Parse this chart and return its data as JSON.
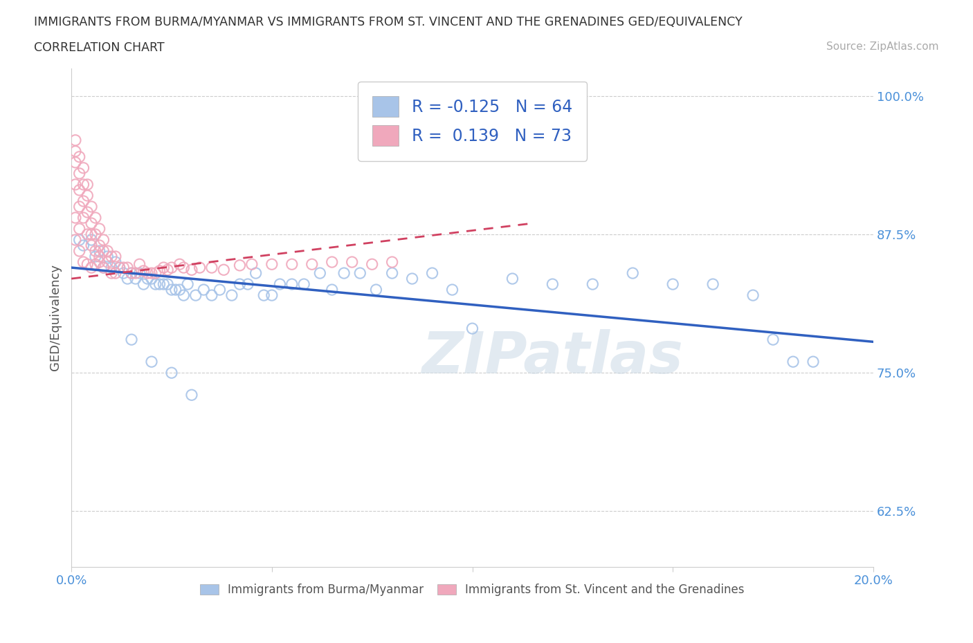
{
  "title_line1": "IMMIGRANTS FROM BURMA/MYANMAR VS IMMIGRANTS FROM ST. VINCENT AND THE GRENADINES GED/EQUIVALENCY",
  "title_line2": "CORRELATION CHART",
  "source_text": "Source: ZipAtlas.com",
  "ylabel": "GED/Equivalency",
  "xlim": [
    0.0,
    0.2
  ],
  "ylim": [
    0.575,
    1.025
  ],
  "ytick_labels": [
    "62.5%",
    "75.0%",
    "87.5%",
    "100.0%"
  ],
  "ytick_values": [
    0.625,
    0.75,
    0.875,
    1.0
  ],
  "series1_label": "Immigrants from Burma/Myanmar",
  "series1_color": "#a8c4e8",
  "series1_edge": "#8ab0d8",
  "series2_label": "Immigrants from St. Vincent and the Grenadines",
  "series2_color": "#f0a8bc",
  "series2_edge": "#e090a8",
  "series1_R": -0.125,
  "series1_N": 64,
  "series2_R": 0.139,
  "series2_N": 73,
  "trend1_color": "#3060c0",
  "trend2_color": "#d04060",
  "watermark": "ZIPatlas",
  "background_color": "#ffffff",
  "blue_points_x": [
    0.002,
    0.003,
    0.005,
    0.006,
    0.007,
    0.008,
    0.009,
    0.01,
    0.011,
    0.012,
    0.013,
    0.014,
    0.015,
    0.016,
    0.017,
    0.018,
    0.019,
    0.02,
    0.021,
    0.022,
    0.023,
    0.024,
    0.025,
    0.026,
    0.027,
    0.028,
    0.029,
    0.031,
    0.033,
    0.035,
    0.037,
    0.04,
    0.042,
    0.044,
    0.046,
    0.048,
    0.05,
    0.052,
    0.055,
    0.058,
    0.062,
    0.065,
    0.068,
    0.072,
    0.076,
    0.08,
    0.085,
    0.09,
    0.095,
    0.1,
    0.11,
    0.12,
    0.13,
    0.14,
    0.15,
    0.16,
    0.17,
    0.175,
    0.18,
    0.185,
    0.015,
    0.02,
    0.025,
    0.03
  ],
  "blue_points_y": [
    0.87,
    0.865,
    0.87,
    0.855,
    0.86,
    0.845,
    0.855,
    0.845,
    0.85,
    0.845,
    0.84,
    0.835,
    0.84,
    0.835,
    0.84,
    0.83,
    0.835,
    0.835,
    0.83,
    0.83,
    0.83,
    0.83,
    0.825,
    0.825,
    0.825,
    0.82,
    0.83,
    0.82,
    0.825,
    0.82,
    0.825,
    0.82,
    0.83,
    0.83,
    0.84,
    0.82,
    0.82,
    0.83,
    0.83,
    0.83,
    0.84,
    0.825,
    0.84,
    0.84,
    0.825,
    0.84,
    0.835,
    0.84,
    0.825,
    0.79,
    0.835,
    0.83,
    0.83,
    0.84,
    0.83,
    0.83,
    0.82,
    0.78,
    0.76,
    0.76,
    0.78,
    0.76,
    0.75,
    0.73
  ],
  "pink_points_x": [
    0.001,
    0.001,
    0.001,
    0.001,
    0.001,
    0.002,
    0.002,
    0.002,
    0.002,
    0.002,
    0.003,
    0.003,
    0.003,
    0.003,
    0.004,
    0.004,
    0.004,
    0.004,
    0.005,
    0.005,
    0.005,
    0.005,
    0.006,
    0.006,
    0.006,
    0.007,
    0.007,
    0.007,
    0.008,
    0.008,
    0.008,
    0.009,
    0.009,
    0.01,
    0.01,
    0.011,
    0.011,
    0.012,
    0.013,
    0.014,
    0.015,
    0.016,
    0.017,
    0.018,
    0.019,
    0.02,
    0.021,
    0.022,
    0.023,
    0.024,
    0.025,
    0.027,
    0.028,
    0.03,
    0.032,
    0.035,
    0.038,
    0.042,
    0.045,
    0.05,
    0.055,
    0.06,
    0.065,
    0.07,
    0.075,
    0.08,
    0.001,
    0.002,
    0.003,
    0.004,
    0.005,
    0.006,
    0.007
  ],
  "pink_points_y": [
    0.96,
    0.95,
    0.94,
    0.92,
    0.89,
    0.945,
    0.93,
    0.915,
    0.9,
    0.88,
    0.935,
    0.92,
    0.905,
    0.89,
    0.92,
    0.91,
    0.895,
    0.875,
    0.9,
    0.885,
    0.875,
    0.865,
    0.89,
    0.875,
    0.86,
    0.88,
    0.865,
    0.855,
    0.87,
    0.86,
    0.845,
    0.86,
    0.85,
    0.855,
    0.84,
    0.855,
    0.84,
    0.845,
    0.845,
    0.845,
    0.84,
    0.84,
    0.848,
    0.842,
    0.84,
    0.84,
    0.84,
    0.842,
    0.845,
    0.843,
    0.845,
    0.848,
    0.845,
    0.843,
    0.845,
    0.845,
    0.843,
    0.847,
    0.848,
    0.848,
    0.848,
    0.848,
    0.85,
    0.85,
    0.848,
    0.85,
    0.87,
    0.86,
    0.85,
    0.848,
    0.845,
    0.848,
    0.85
  ]
}
